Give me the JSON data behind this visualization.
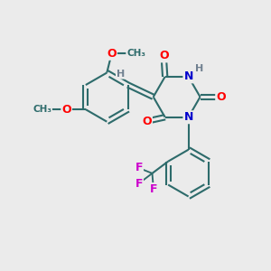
{
  "bg_color": "#ebebeb",
  "bond_color": "#2d6b6b",
  "bond_width": 1.5,
  "atom_colors": {
    "O": "#ff0000",
    "N": "#0000cc",
    "F": "#cc00cc",
    "H": "#708090",
    "C": "#2d6b6b"
  },
  "font_size": 9,
  "fig_size": [
    3.0,
    3.0
  ],
  "dpi": 100
}
